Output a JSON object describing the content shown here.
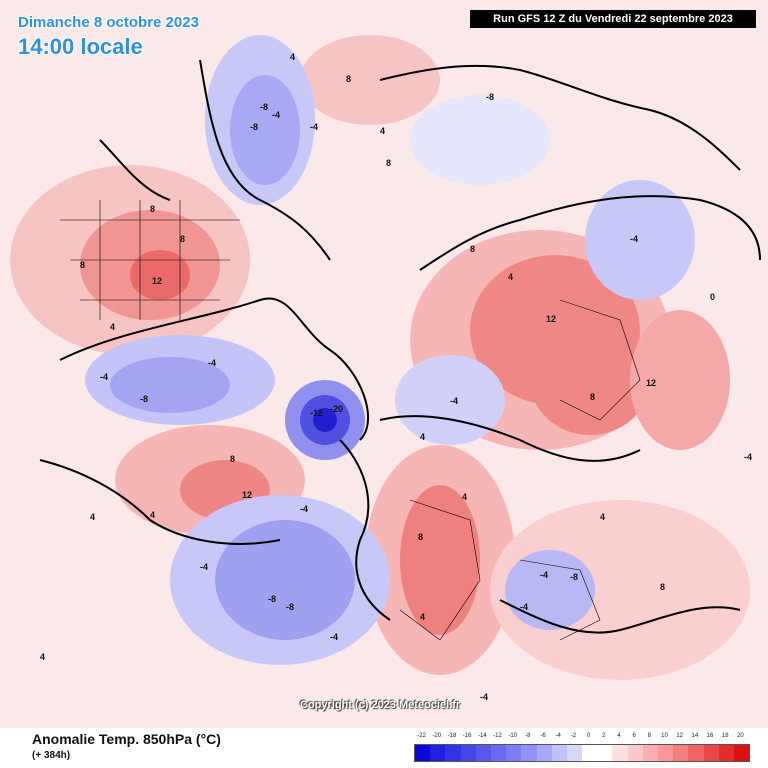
{
  "header": {
    "date_line": "Dimanche 8 octobre 2023",
    "time_line": "14:00 locale",
    "run_info": "Run GFS 12 Z du Vendredi 22 septembre 2023"
  },
  "watermark": "Copyright (c) 2023 Meteociel.fr",
  "legend": {
    "title": "Anomalie Temp. 850hPa (°C)",
    "subtitle": "(+ 384h)",
    "ticks": [
      "-22",
      "-20",
      "-18",
      "-16",
      "-14",
      "-12",
      "-10",
      "-8",
      "-6",
      "-4",
      "-2",
      "0",
      "2",
      "4",
      "6",
      "8",
      "10",
      "12",
      "14",
      "16",
      "18",
      "20"
    ],
    "colors": [
      "#0a0ad8",
      "#1f1fe0",
      "#3333e6",
      "#4545ec",
      "#5858ef",
      "#6b6bf2",
      "#7e7ef4",
      "#9292f6",
      "#a8a8f8",
      "#c0c0fa",
      "#d8d8fc",
      "#ffffff",
      "#ffffff",
      "#fde0e0",
      "#fcc8c8",
      "#fab0b0",
      "#f89898",
      "#f47e7e",
      "#f06464",
      "#ea4848",
      "#e32c2c",
      "#dc1010"
    ]
  },
  "map_labels": [
    "12",
    "8",
    "8",
    "8",
    "4",
    "-4",
    "-8",
    "-8",
    "-4",
    "4",
    "8",
    "4",
    "-4",
    "-8",
    "-4",
    "-12",
    "-20",
    "-4",
    "8",
    "12",
    "4",
    "-4",
    "-8",
    "-8",
    "-4",
    "8",
    "4",
    "4",
    "-4",
    "-8",
    "-4",
    "12",
    "8",
    "4",
    "12",
    "8",
    "-4",
    "-4",
    "4",
    "-8",
    "8",
    "-4",
    "4",
    "4",
    "0",
    "-4",
    "4",
    "8"
  ]
}
